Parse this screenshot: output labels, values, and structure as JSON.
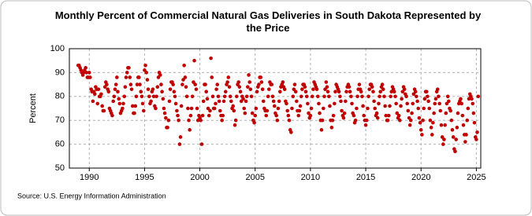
{
  "chart_data": {
    "type": "scatter",
    "title": "Monthly Percent of Commercial Natural Gas Deliveries in South Dakota Represented by the Price",
    "ylabel": "Percent",
    "source": "Source: U.S. Energy Information Administration",
    "color": "#c00000",
    "grid": true,
    "xlim": [
      1988.2,
      2025.4
    ],
    "ylim": [
      50,
      100
    ],
    "xticks": [
      1990,
      1995,
      2000,
      2005,
      2010,
      2015,
      2020,
      2025
    ],
    "yticks": [
      50,
      60,
      70,
      80,
      90,
      100
    ],
    "x": [
      1989.0,
      1989.08,
      1989.17,
      1989.25,
      1989.33,
      1989.42,
      1989.5,
      1989.58,
      1989.67,
      1989.75,
      1989.83,
      1989.92,
      1990.0,
      1990.08,
      1990.17,
      1990.25,
      1990.33,
      1990.42,
      1990.5,
      1990.58,
      1990.67,
      1990.75,
      1990.83,
      1990.92,
      1991.0,
      1991.08,
      1991.17,
      1991.25,
      1991.33,
      1991.42,
      1991.5,
      1991.58,
      1991.67,
      1991.75,
      1991.83,
      1991.92,
      1992.0,
      1992.08,
      1992.17,
      1992.25,
      1992.33,
      1992.42,
      1992.5,
      1992.58,
      1992.67,
      1992.75,
      1992.83,
      1992.92,
      1993.0,
      1993.08,
      1993.17,
      1993.25,
      1993.33,
      1993.42,
      1993.5,
      1993.58,
      1993.67,
      1993.75,
      1993.83,
      1993.92,
      1994.0,
      1994.08,
      1994.17,
      1994.25,
      1994.33,
      1994.42,
      1994.5,
      1994.58,
      1994.67,
      1994.75,
      1994.83,
      1994.92,
      1995.0,
      1995.08,
      1995.17,
      1995.25,
      1995.33,
      1995.42,
      1995.5,
      1995.58,
      1995.67,
      1995.75,
      1995.83,
      1995.92,
      1996.0,
      1996.08,
      1996.17,
      1996.25,
      1996.33,
      1996.42,
      1996.5,
      1996.58,
      1996.67,
      1996.75,
      1996.83,
      1996.92,
      1997.0,
      1997.08,
      1997.17,
      1997.25,
      1997.33,
      1997.42,
      1997.5,
      1997.58,
      1997.67,
      1997.75,
      1997.83,
      1997.92,
      1998.0,
      1998.08,
      1998.17,
      1998.25,
      1998.33,
      1998.42,
      1998.5,
      1998.58,
      1998.67,
      1998.75,
      1998.83,
      1998.92,
      1999.0,
      1999.08,
      1999.17,
      1999.25,
      1999.33,
      1999.42,
      1999.5,
      1999.58,
      1999.67,
      1999.75,
      1999.83,
      1999.92,
      2000.0,
      2000.08,
      2000.17,
      2000.25,
      2000.33,
      2000.42,
      2000.5,
      2000.58,
      2000.67,
      2000.75,
      2000.83,
      2000.92,
      2001.0,
      2001.08,
      2001.17,
      2001.25,
      2001.33,
      2001.42,
      2001.5,
      2001.58,
      2001.67,
      2001.75,
      2001.83,
      2001.92,
      2002.0,
      2002.08,
      2002.17,
      2002.25,
      2002.33,
      2002.42,
      2002.5,
      2002.58,
      2002.67,
      2002.75,
      2002.83,
      2002.92,
      2003.0,
      2003.08,
      2003.17,
      2003.25,
      2003.33,
      2003.42,
      2003.5,
      2003.58,
      2003.67,
      2003.75,
      2003.83,
      2003.92,
      2004.0,
      2004.08,
      2004.17,
      2004.25,
      2004.33,
      2004.42,
      2004.5,
      2004.58,
      2004.67,
      2004.75,
      2004.83,
      2004.92,
      2005.0,
      2005.08,
      2005.17,
      2005.25,
      2005.33,
      2005.42,
      2005.5,
      2005.58,
      2005.67,
      2005.75,
      2005.83,
      2005.92,
      2006.0,
      2006.08,
      2006.17,
      2006.25,
      2006.33,
      2006.42,
      2006.5,
      2006.58,
      2006.67,
      2006.75,
      2006.83,
      2006.92,
      2007.0,
      2007.08,
      2007.17,
      2007.25,
      2007.33,
      2007.42,
      2007.5,
      2007.58,
      2007.67,
      2007.75,
      2007.83,
      2007.92,
      2008.0,
      2008.08,
      2008.17,
      2008.25,
      2008.33,
      2008.42,
      2008.5,
      2008.58,
      2008.67,
      2008.75,
      2008.83,
      2008.92,
      2009.0,
      2009.08,
      2009.17,
      2009.25,
      2009.33,
      2009.42,
      2009.5,
      2009.58,
      2009.67,
      2009.75,
      2009.83,
      2009.92,
      2010.0,
      2010.08,
      2010.17,
      2010.25,
      2010.33,
      2010.42,
      2010.5,
      2010.58,
      2010.67,
      2010.75,
      2010.83,
      2010.92,
      2011.0,
      2011.08,
      2011.17,
      2011.25,
      2011.33,
      2011.42,
      2011.5,
      2011.58,
      2011.67,
      2011.75,
      2011.83,
      2011.92,
      2012.0,
      2012.08,
      2012.17,
      2012.25,
      2012.33,
      2012.42,
      2012.5,
      2012.58,
      2012.67,
      2012.75,
      2012.83,
      2012.92,
      2013.0,
      2013.08,
      2013.17,
      2013.25,
      2013.33,
      2013.42,
      2013.5,
      2013.58,
      2013.67,
      2013.75,
      2013.83,
      2013.92,
      2014.0,
      2014.08,
      2014.17,
      2014.25,
      2014.33,
      2014.42,
      2014.5,
      2014.58,
      2014.67,
      2014.75,
      2014.83,
      2014.92,
      2015.0,
      2015.08,
      2015.17,
      2015.25,
      2015.33,
      2015.42,
      2015.5,
      2015.58,
      2015.67,
      2015.75,
      2015.83,
      2015.92,
      2016.0,
      2016.08,
      2016.17,
      2016.25,
      2016.33,
      2016.42,
      2016.5,
      2016.58,
      2016.67,
      2016.75,
      2016.83,
      2016.92,
      2017.0,
      2017.08,
      2017.17,
      2017.25,
      2017.33,
      2017.42,
      2017.5,
      2017.58,
      2017.67,
      2017.75,
      2017.83,
      2017.92,
      2018.0,
      2018.08,
      2018.17,
      2018.25,
      2018.33,
      2018.42,
      2018.5,
      2018.58,
      2018.67,
      2018.75,
      2018.83,
      2018.92,
      2019.0,
      2019.08,
      2019.17,
      2019.25,
      2019.33,
      2019.42,
      2019.5,
      2019.58,
      2019.67,
      2019.75,
      2019.83,
      2019.92,
      2020.0,
      2020.08,
      2020.17,
      2020.25,
      2020.33,
      2020.42,
      2020.5,
      2020.58,
      2020.67,
      2020.75,
      2020.83,
      2020.92,
      2021.0,
      2021.08,
      2021.17,
      2021.25,
      2021.33,
      2021.42,
      2021.5,
      2021.58,
      2021.67,
      2021.75,
      2021.83,
      2021.92,
      2022.0,
      2022.08,
      2022.17,
      2022.25,
      2022.33,
      2022.42,
      2022.5,
      2022.58,
      2022.67,
      2022.75,
      2022.83,
      2022.92,
      2023.0,
      2023.08,
      2023.17,
      2023.25,
      2023.33,
      2023.42,
      2023.5,
      2023.58,
      2023.67,
      2023.75,
      2023.83,
      2023.92,
      2024.0,
      2024.08,
      2024.17,
      2024.25,
      2024.33,
      2024.42,
      2024.5,
      2024.58,
      2024.67,
      2024.75,
      2024.83,
      2024.92,
      2025.0,
      2025.08,
      2025.17
    ],
    "values": [
      93,
      93,
      92,
      91,
      90,
      89,
      90,
      91,
      92,
      90,
      88,
      88,
      90,
      88,
      83,
      82,
      78,
      82,
      81,
      84,
      83,
      77,
      83,
      80,
      80,
      81,
      76,
      74,
      74,
      84,
      86,
      85,
      83,
      82,
      75,
      74,
      73,
      72,
      78,
      80,
      83,
      85,
      88,
      82,
      79,
      77,
      73,
      74,
      75,
      77,
      80,
      84,
      88,
      90,
      92,
      92,
      88,
      85,
      83,
      76,
      73,
      73,
      76,
      80,
      85,
      88,
      88,
      85,
      82,
      80,
      77,
      74,
      91,
      93,
      90,
      87,
      83,
      80,
      77,
      78,
      82,
      83,
      80,
      76,
      75,
      80,
      84,
      88,
      90,
      89,
      85,
      82,
      79,
      75,
      73,
      71,
      67,
      67,
      70,
      78,
      83,
      86,
      86,
      85,
      82,
      80,
      77,
      74,
      72,
      70,
      60,
      63,
      76,
      85,
      87,
      93,
      88,
      84,
      80,
      75,
      70,
      66,
      72,
      75,
      80,
      86,
      95,
      85,
      83,
      75,
      70,
      72,
      71,
      70,
      60,
      72,
      78,
      85,
      85,
      82,
      79,
      75,
      72,
      74,
      96,
      88,
      80,
      75,
      75,
      77,
      83,
      85,
      80,
      78,
      74,
      72,
      70,
      72,
      78,
      80,
      82,
      85,
      86,
      88,
      84,
      80,
      78,
      75,
      76,
      74,
      68,
      70,
      80,
      85,
      86,
      84,
      82,
      78,
      80,
      79,
      75,
      73,
      78,
      80,
      84,
      89,
      86,
      83,
      80,
      73,
      70,
      69,
      72,
      75,
      82,
      84,
      85,
      88,
      88,
      86,
      83,
      78,
      75,
      74,
      72,
      74,
      80,
      83,
      86,
      85,
      85,
      80,
      78,
      76,
      73,
      72,
      70,
      75,
      78,
      82,
      84,
      85,
      86,
      84,
      83,
      78,
      77,
      74,
      72,
      70,
      66,
      65,
      75,
      80,
      83,
      85,
      82,
      78,
      74,
      72,
      74,
      76,
      80,
      83,
      85,
      85,
      84,
      82,
      80,
      77,
      73,
      71,
      72,
      75,
      80,
      83,
      86,
      85,
      84,
      83,
      80,
      77,
      73,
      70,
      66,
      70,
      75,
      80,
      83,
      86,
      84,
      82,
      80,
      76,
      70,
      67,
      70,
      72,
      77,
      82,
      85,
      84,
      83,
      82,
      80,
      78,
      74,
      72,
      71,
      73,
      78,
      82,
      84,
      85,
      84,
      82,
      80,
      77,
      73,
      72,
      69,
      70,
      75,
      80,
      83,
      85,
      83,
      82,
      80,
      76,
      72,
      70,
      68,
      70,
      75,
      80,
      83,
      85,
      85,
      84,
      82,
      78,
      75,
      72,
      73,
      71,
      77,
      80,
      82,
      84,
      85,
      83,
      80,
      76,
      72,
      70,
      70,
      72,
      76,
      80,
      82,
      84,
      83,
      82,
      80,
      77,
      73,
      71,
      72,
      70,
      76,
      79,
      82,
      84,
      83,
      81,
      80,
      77,
      74,
      71,
      68,
      70,
      73,
      77,
      81,
      83,
      82,
      80,
      78,
      75,
      71,
      69,
      66,
      64,
      70,
      75,
      79,
      82,
      82,
      80,
      78,
      75,
      70,
      67,
      64,
      69,
      73,
      77,
      79,
      82,
      83,
      80,
      77,
      74,
      68,
      63,
      60,
      62,
      68,
      73,
      77,
      80,
      78,
      75,
      74,
      70,
      66,
      63,
      58,
      57,
      62,
      67,
      73,
      77,
      78,
      79,
      77,
      72,
      68,
      64,
      61,
      64,
      70,
      75,
      79,
      81,
      80,
      79,
      77,
      73,
      69,
      63,
      62,
      65,
      80
    ]
  }
}
